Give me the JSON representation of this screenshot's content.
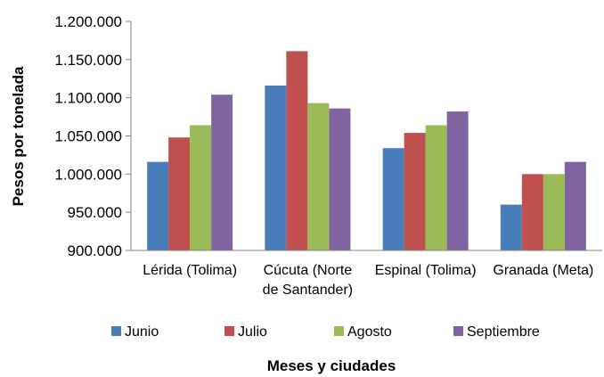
{
  "chart_data": {
    "type": "bar",
    "title": "",
    "xlabel": "Meses y ciudades",
    "ylabel": "Pesos por tonelada",
    "ylim": [
      900000,
      1200000
    ],
    "y_ticks": [
      "900.000",
      "950.000",
      "1.000.000",
      "1.050.000",
      "1.100.000",
      "1.150.000",
      "1.200.000"
    ],
    "grid": false,
    "legend_position": "bottom",
    "categories": [
      [
        "Lérida (Tolima)"
      ],
      [
        "Cúcuta (Norte",
        "de Santander)"
      ],
      [
        "Espinal (Tolima)"
      ],
      [
        "Granada (Meta)"
      ]
    ],
    "series": [
      {
        "name": "Junio",
        "color": "#4a7ebb",
        "values": [
          1016000,
          1116000,
          1034000,
          960000
        ]
      },
      {
        "name": "Julio",
        "color": "#c0504d",
        "values": [
          1048000,
          1161000,
          1054000,
          1000000
        ]
      },
      {
        "name": "Agosto",
        "color": "#9bbb59",
        "values": [
          1064000,
          1093000,
          1064000,
          1000000
        ]
      },
      {
        "name": "Septiembre",
        "color": "#8064a2",
        "values": [
          1104000,
          1086000,
          1082000,
          1016000
        ]
      }
    ]
  }
}
